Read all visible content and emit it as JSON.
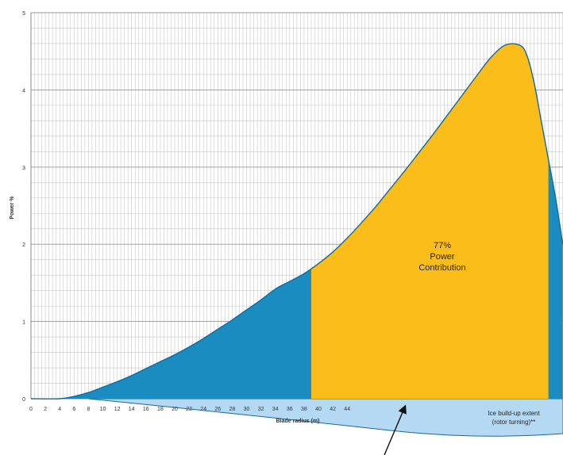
{
  "chart_data": {
    "type": "area",
    "title": "",
    "xlabel": "Blade radius (m)",
    "ylabel": "Power %",
    "xlim": [
      0,
      74
    ],
    "ylim": [
      0,
      5
    ],
    "x_ticks": [
      "0",
      "2",
      "4",
      "6",
      "8",
      "10",
      "12",
      "14",
      "16",
      "18",
      "20",
      "22",
      "24",
      "26",
      "28",
      "30",
      "32",
      "34",
      "36",
      "38",
      "40",
      "42",
      "44"
    ],
    "y_ticks": [
      "0",
      "1",
      "2",
      "3",
      "4",
      "5"
    ],
    "grid": true,
    "series": [
      {
        "x": [
          0,
          4,
          6,
          8,
          10,
          12,
          14,
          16,
          18,
          20,
          22,
          24,
          26,
          28,
          30,
          32,
          34,
          36,
          38,
          40,
          42,
          44,
          46,
          48,
          50,
          52,
          54,
          56,
          58,
          60,
          62,
          64,
          66,
          68,
          69,
          70,
          71,
          72,
          73,
          74
        ],
        "y": [
          0,
          0,
          0.03,
          0.08,
          0.15,
          0.22,
          0.3,
          0.39,
          0.48,
          0.57,
          0.67,
          0.78,
          0.9,
          1.02,
          1.15,
          1.28,
          1.42,
          1.52,
          1.62,
          1.75,
          1.9,
          2.08,
          2.28,
          2.49,
          2.72,
          2.95,
          3.19,
          3.43,
          3.68,
          3.93,
          4.18,
          4.42,
          4.58,
          4.58,
          4.45,
          4.1,
          3.6,
          3.1,
          2.6,
          2.0
        ]
      }
    ],
    "shaded_region": {
      "x_from": 39,
      "x_to": 72
    },
    "annotations": {
      "region_percent": "77%",
      "region_line1": "Power",
      "region_line2": "Contribution",
      "ice_line1": "Ice build-up extent",
      "ice_line2": "(rotor turning)**"
    },
    "colors": {
      "blue_fill": "#1b8cbf",
      "orange_fill": "#fbbd1a",
      "ice_fill": "#b6d9f3",
      "curve": "#1469a0",
      "grid": "#c8c8c8"
    }
  }
}
